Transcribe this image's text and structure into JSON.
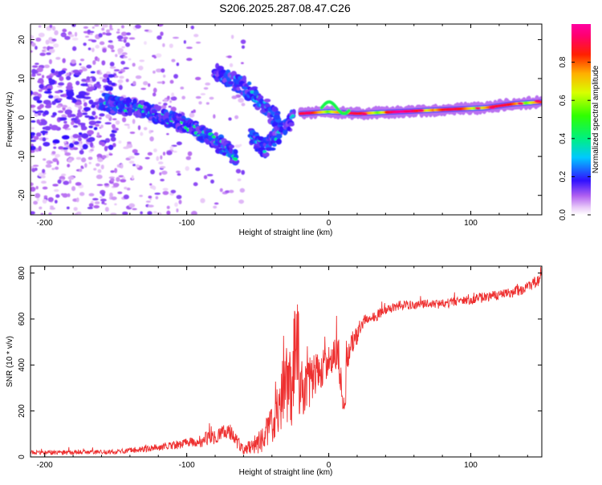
{
  "figure_title": "S206.2025.287.08.47.C26",
  "colors": {
    "snr_line": "#ee3030",
    "axis": "#000000",
    "background": "#ffffff"
  },
  "chart_data": [
    {
      "type": "heatmap",
      "title": "S206.2025.287.08.47.C26",
      "xlabel": "Height of straight line (km)",
      "ylabel": "Frequency (Hz)",
      "xlim": [
        -210,
        150
      ],
      "ylim": [
        -25,
        24
      ],
      "xticks": [
        -200,
        -100,
        0,
        100
      ],
      "xtick_labels": [
        "-200",
        "-100",
        "0",
        "100"
      ],
      "yticks": [
        -20,
        -10,
        0,
        10,
        20
      ],
      "ytick_labels": [
        "-20",
        "-10",
        "0",
        "10",
        "20"
      ],
      "colorbar": {
        "label": "Normalized spectral amplitude",
        "range": [
          0,
          1
        ],
        "ticks": [
          0,
          0.2,
          0.4,
          0.6,
          0.8
        ],
        "tick_labels": [
          "0.0",
          "0.2",
          "0.4",
          "0.6",
          "0.8"
        ],
        "colormap": "rainbow (white-violet-blue-cyan-green-yellow-red-magenta)"
      },
      "features": [
        {
          "name": "noise scatter",
          "x_range": [
            -210,
            -60
          ],
          "freq_range": [
            -25,
            24
          ],
          "amplitude": 0.08
        },
        {
          "name": "descending track",
          "x": [
            -160,
            -130,
            -100,
            -80,
            -65
          ],
          "freq": [
            4,
            2,
            -2,
            -6,
            -10
          ],
          "amplitude": 0.35
        },
        {
          "name": "upper branch",
          "x": [
            -80,
            -60,
            -45,
            -35
          ],
          "freq": [
            12,
            8,
            3,
            -1
          ],
          "amplitude": 0.3
        },
        {
          "name": "lower branch",
          "x": [
            -55,
            -45,
            -35,
            -25
          ],
          "freq": [
            -5,
            -8,
            -4,
            0
          ],
          "amplitude": 0.3
        },
        {
          "name": "main echo",
          "x": [
            -20,
            0,
            20,
            50,
            80,
            110,
            130,
            150
          ],
          "freq": [
            1,
            1.5,
            1,
            1.5,
            2,
            2.5,
            3.5,
            4
          ],
          "amplitude": 0.9
        }
      ]
    },
    {
      "type": "line",
      "xlabel": "Height of straight line (km)",
      "ylabel": "SNR (10 * v/v)",
      "xlim": [
        -210,
        150
      ],
      "ylim": [
        0,
        830
      ],
      "xticks": [
        -200,
        -100,
        0,
        100
      ],
      "xtick_labels": [
        "-200",
        "-100",
        "0",
        "100"
      ],
      "yticks": [
        0,
        200,
        400,
        600,
        800
      ],
      "ytick_labels": [
        "0",
        "200",
        "400",
        "600",
        "800"
      ],
      "series": [
        {
          "name": "SNR",
          "x": [
            -210,
            -190,
            -170,
            -150,
            -130,
            -110,
            -100,
            -90,
            -80,
            -70,
            -60,
            -50,
            -40,
            -35,
            -30,
            -25,
            -20,
            -15,
            -10,
            -5,
            0,
            5,
            10,
            15,
            20,
            25,
            30,
            40,
            50,
            60,
            70,
            80,
            90,
            100,
            110,
            120,
            130,
            140,
            150
          ],
          "y": [
            20,
            18,
            20,
            22,
            35,
            50,
            60,
            70,
            90,
            110,
            30,
            60,
            130,
            230,
            320,
            320,
            280,
            300,
            360,
            380,
            420,
            440,
            380,
            490,
            530,
            580,
            600,
            640,
            660,
            660,
            665,
            665,
            675,
            685,
            695,
            705,
            715,
            740,
            780
          ],
          "noise_amplitude": [
            10,
            10,
            10,
            10,
            14,
            18,
            22,
            28,
            38,
            40,
            20,
            45,
            100,
            130,
            170,
            190,
            140,
            110,
            90,
            80,
            70,
            90,
            140,
            60,
            40,
            30,
            25,
            20,
            20,
            20,
            20,
            20,
            20,
            22,
            22,
            22,
            22,
            25,
            28
          ]
        }
      ]
    }
  ]
}
